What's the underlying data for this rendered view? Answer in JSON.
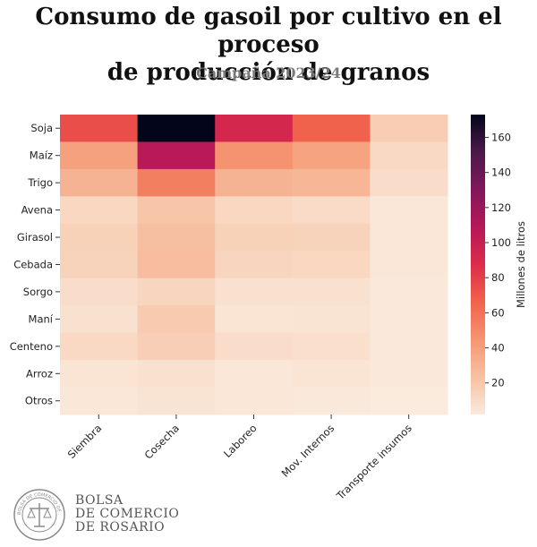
{
  "header": {
    "title_line1": "Consumo de gasoil por cultivo en el proceso",
    "title_line2": "de producción de granos",
    "subtitle": "Campaña 2023/24"
  },
  "logo": {
    "line1": "BOLSA",
    "line2": "DE COMERCIO",
    "line3": "DE ROSARIO",
    "seal_text": "BOLSA DE COMERCIO DE ROSARIO"
  },
  "chart_data": {
    "type": "heatmap",
    "rows": [
      "Soja",
      "Maíz",
      "Trigo",
      "Avena",
      "Girasol",
      "Cebada",
      "Sorgo",
      "Maní",
      "Centeno",
      "Arroz",
      "Otros"
    ],
    "columns": [
      "Siembra",
      "Cosecha",
      "Laboreo",
      "Mov. Internos",
      "Transporte insumos"
    ],
    "values": [
      [
        74,
        173,
        93,
        66,
        17
      ],
      [
        39,
        107,
        46,
        38,
        11
      ],
      [
        30,
        54,
        30,
        28,
        9
      ],
      [
        12,
        21,
        12,
        10,
        4
      ],
      [
        15,
        24,
        15,
        14,
        4
      ],
      [
        14,
        25,
        13,
        12,
        4
      ],
      [
        9,
        13,
        7,
        7,
        3
      ],
      [
        7,
        18,
        5,
        6,
        3
      ],
      [
        11,
        16,
        9,
        8,
        3
      ],
      [
        5,
        7,
        4,
        5,
        3
      ],
      [
        4,
        6,
        4,
        3,
        2
      ]
    ],
    "colorbar": {
      "label": "Millones de litros",
      "ticks": [
        20,
        40,
        60,
        80,
        100,
        120,
        140,
        160
      ],
      "range": [
        2,
        173
      ],
      "colormap": "rocket_r"
    }
  }
}
